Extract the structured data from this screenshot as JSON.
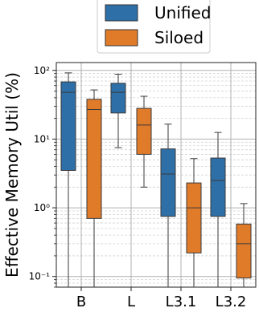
{
  "chart_data": {
    "type": "boxplot",
    "categories": [
      "B",
      "L",
      "L3.1",
      "L3.2"
    ],
    "ylabel": "Effective Memory Util (%)",
    "xlabel": "",
    "yscale": "log",
    "ylim": [
      0.07,
      130
    ],
    "ytick_values": [
      0.1,
      1,
      10,
      100
    ],
    "ytick_labels": [
      "10⁻¹",
      "10⁰",
      "10¹",
      "10²"
    ],
    "grid": "on, major and minor",
    "legend_placement": "top-center",
    "series": [
      {
        "name": "Unified",
        "color": "#2e6fa7",
        "boxes": [
          {
            "category": "B",
            "whisker_low": 0.07,
            "q1": 3.5,
            "median": 48,
            "q3": 68,
            "whisker_high": 92
          },
          {
            "category": "L",
            "whisker_low": 7.5,
            "q1": 24,
            "median": 48,
            "q3": 65,
            "whisker_high": 88
          },
          {
            "category": "L3.1",
            "whisker_low": 0.07,
            "q1": 0.75,
            "median": 3.1,
            "q3": 7.2,
            "whisker_high": 16.5
          },
          {
            "category": "L3.2",
            "whisker_low": 0.07,
            "q1": 0.75,
            "median": 2.5,
            "q3": 5.3,
            "whisker_high": 12.5
          }
        ]
      },
      {
        "name": "Siloed",
        "color": "#e07b2a",
        "boxes": [
          {
            "category": "B",
            "whisker_low": 0.07,
            "q1": 0.7,
            "median": 27,
            "q3": 38,
            "whisker_high": 52
          },
          {
            "category": "L",
            "whisker_low": 2.0,
            "q1": 6.0,
            "median": 16,
            "q3": 28,
            "whisker_high": 42
          },
          {
            "category": "L3.1",
            "whisker_low": 0.07,
            "q1": 0.22,
            "median": 1.0,
            "q3": 2.3,
            "whisker_high": 5.2
          },
          {
            "category": "L3.2",
            "whisker_low": 0.07,
            "q1": 0.095,
            "median": 0.3,
            "q3": 0.58,
            "whisker_high": 1.15
          }
        ]
      }
    ]
  }
}
